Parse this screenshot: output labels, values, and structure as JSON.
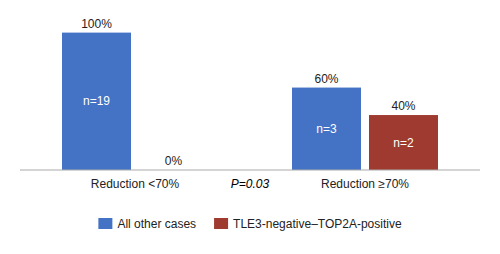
{
  "chart_data": {
    "type": "bar",
    "categories": [
      "Reduction <70%",
      "Reduction ≥70%"
    ],
    "series": [
      {
        "name": "All other cases",
        "color": "#4472C4",
        "values": [
          100,
          60
        ],
        "value_labels": [
          "100%",
          "60%"
        ],
        "n_labels": [
          "n=19",
          "n=3"
        ]
      },
      {
        "name": "TLE3-negative–TOP2A-positive",
        "color": "#9E3A2F",
        "values": [
          0,
          40
        ],
        "value_labels": [
          "0%",
          "40%"
        ],
        "n_labels": [
          null,
          "n=2"
        ]
      }
    ],
    "annotations": [
      "P=0.03"
    ],
    "ylim": [
      0,
      115
    ],
    "grid": false,
    "legend": "bottom",
    "data_labels": true,
    "tick_labels": "x"
  }
}
